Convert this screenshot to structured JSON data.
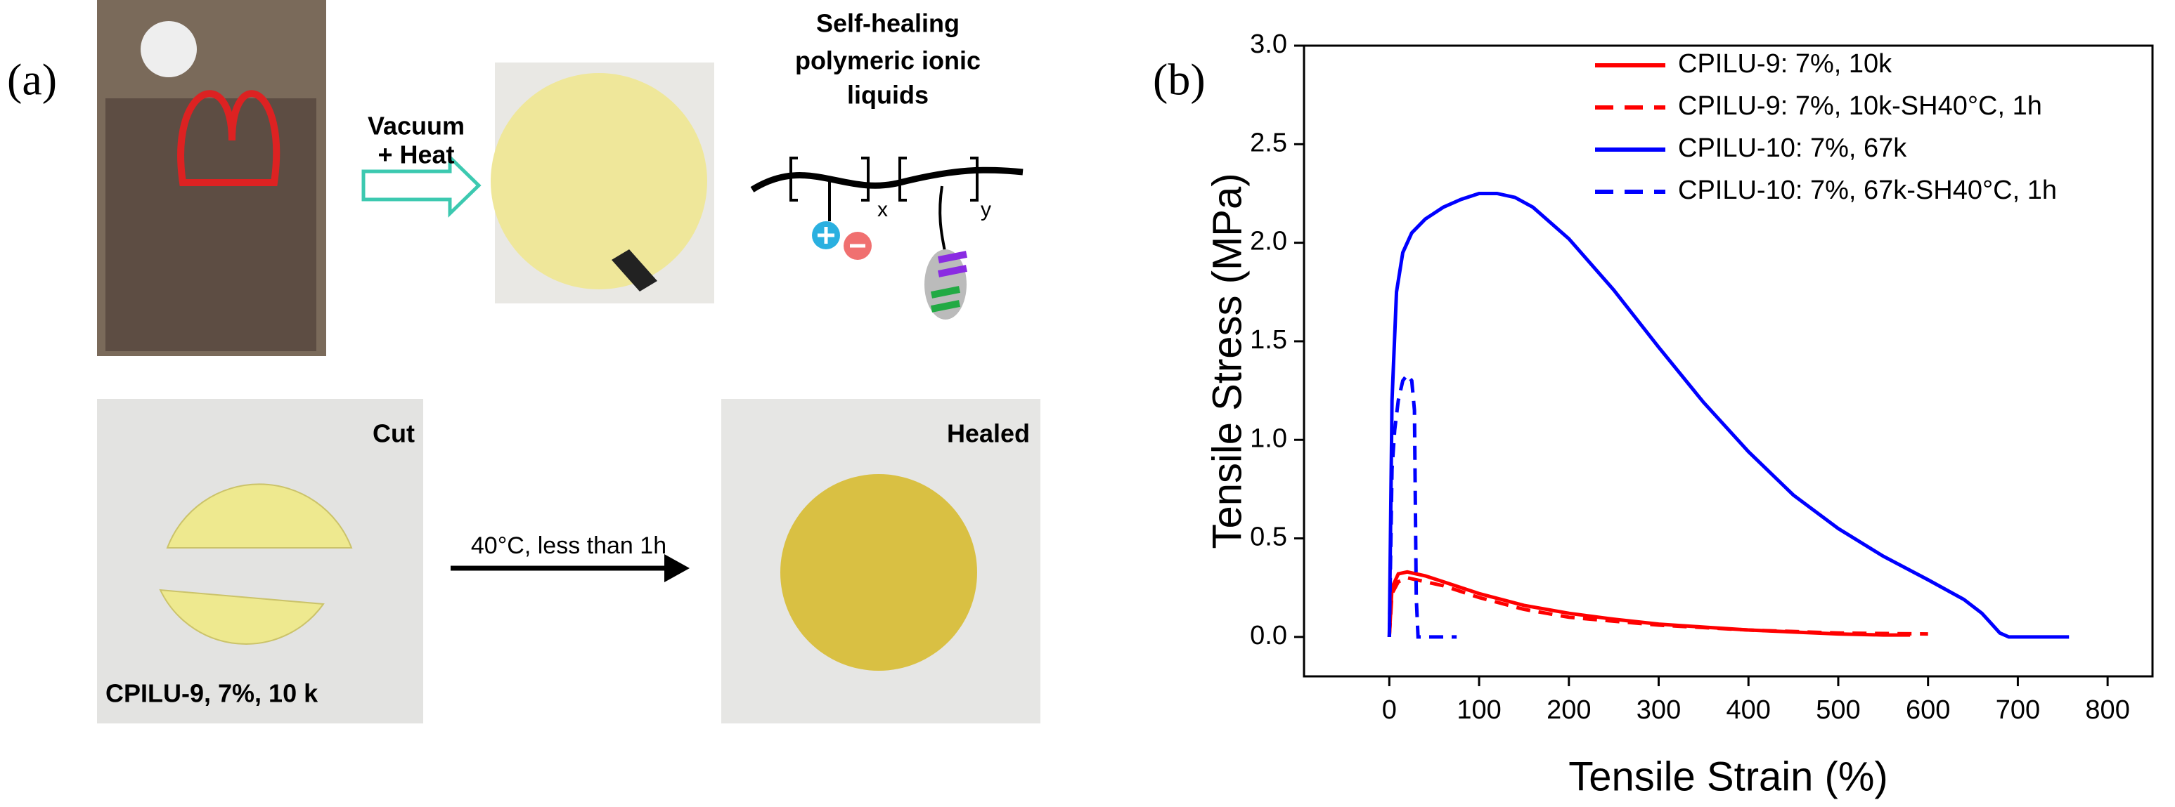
{
  "panel_a": {
    "label": "(a)",
    "arrow1_text": [
      "Vacuum",
      "+ Heat"
    ],
    "polymer_title": [
      "Self-healing",
      "polymeric ionic",
      "liquids"
    ],
    "subscript_x": "x",
    "subscript_y": "y",
    "cut_label": "Cut",
    "sample_label": "CPILU-9, 7%,  10 k",
    "arrow2_text": "40°C, less than 1h",
    "healed_label": "Healed"
  },
  "panel_b_label": "(b)",
  "chart_data": {
    "type": "line",
    "x_label": "Tensile Strain (%)",
    "y_label": "Tensile Stress (MPa)",
    "xlim": [
      -95,
      850
    ],
    "xticks": [
      0,
      100,
      200,
      300,
      400,
      500,
      600,
      700,
      800
    ],
    "ylim": [
      -0.2,
      3.0
    ],
    "yticks": [
      {
        "value": 0,
        "label": "0.0"
      },
      0.5,
      {
        "value": 1,
        "label": "1.0"
      },
      1.5,
      {
        "value": 2,
        "label": "2.0"
      },
      2.5,
      {
        "value": 3,
        "label": "3.0"
      }
    ],
    "legend": "upper right",
    "series": [
      {
        "name": "CPILU-9: 7%, 10k",
        "color": "#ff0000",
        "linestyle": "solid",
        "x": [
          0,
          3,
          10,
          20,
          40,
          60,
          100,
          150,
          200,
          250,
          300,
          350,
          400,
          450,
          500,
          550,
          580
        ],
        "values": [
          0,
          0.25,
          0.32,
          0.33,
          0.31,
          0.28,
          0.22,
          0.16,
          0.12,
          0.09,
          0.065,
          0.05,
          0.035,
          0.025,
          0.015,
          0.01,
          0.01
        ]
      },
      {
        "name": "CPILU-9: 7%, 10k-SH40°C, 1h",
        "color": "#ff0000",
        "linestyle": "dashed",
        "x": [
          0,
          3,
          10,
          20,
          40,
          60,
          100,
          150,
          200,
          300,
          400,
          500,
          600
        ],
        "values": [
          0,
          0.22,
          0.28,
          0.3,
          0.28,
          0.26,
          0.2,
          0.14,
          0.1,
          0.06,
          0.035,
          0.02,
          0.015
        ]
      },
      {
        "name": "CPILU-10: 7%, 67k",
        "color": "#0000ff",
        "linestyle": "solid",
        "x": [
          0,
          3,
          8,
          15,
          25,
          40,
          60,
          80,
          100,
          120,
          140,
          160,
          200,
          250,
          300,
          350,
          400,
          450,
          500,
          550,
          600,
          640,
          660,
          670,
          680,
          690,
          700,
          720,
          757
        ],
        "values": [
          0,
          1.2,
          1.75,
          1.95,
          2.05,
          2.12,
          2.18,
          2.22,
          2.25,
          2.25,
          2.23,
          2.18,
          2.02,
          1.76,
          1.47,
          1.19,
          0.94,
          0.72,
          0.55,
          0.41,
          0.29,
          0.19,
          0.12,
          0.07,
          0.02,
          0,
          0,
          0,
          0
        ]
      },
      {
        "name": "CPILU-10: 7%, 67k-SH40°C, 1h",
        "color": "#0000ff",
        "linestyle": "dashed",
        "x": [
          0,
          3,
          6,
          10,
          15,
          20,
          25,
          28,
          30,
          32,
          40,
          60,
          75
        ],
        "values": [
          0,
          0.85,
          1.05,
          1.2,
          1.3,
          1.33,
          1.3,
          1.15,
          0.2,
          0,
          0,
          0,
          0
        ]
      }
    ]
  }
}
